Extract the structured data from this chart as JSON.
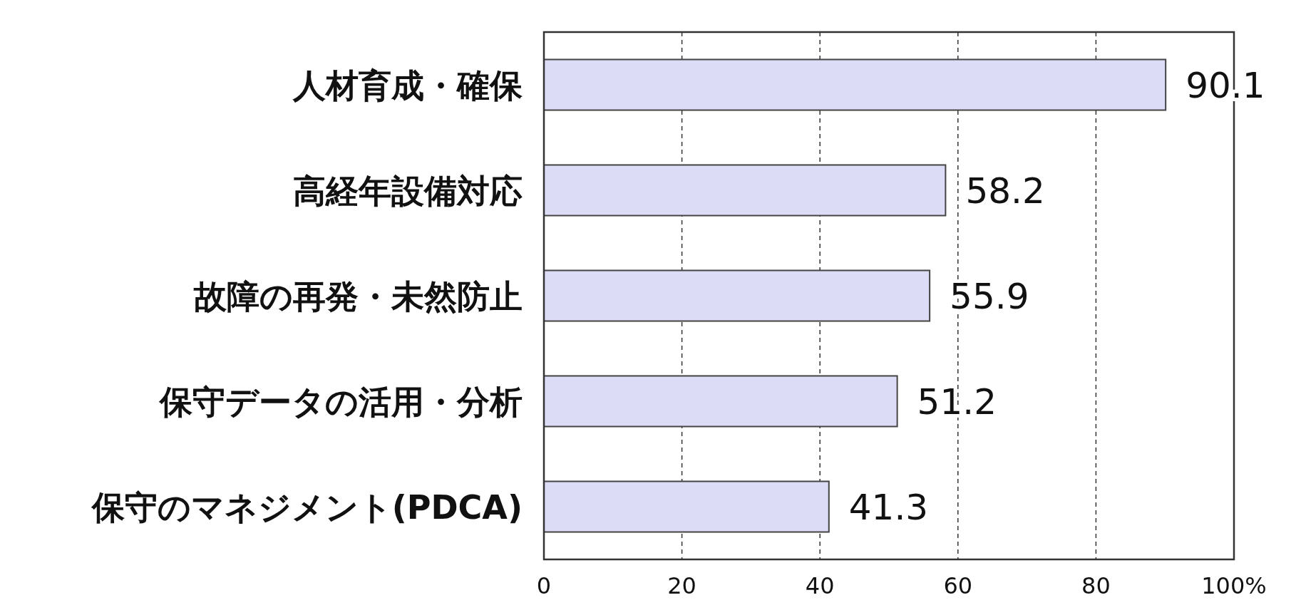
{
  "chart_data": {
    "type": "bar",
    "orientation": "horizontal",
    "categories": [
      "人材育成・確保",
      "高経年設備対応",
      "故障の再発・未然防止",
      "保守データの活用・分析",
      "保守のマネジメント(PDCA)"
    ],
    "values": [
      90.1,
      58.2,
      55.9,
      51.2,
      41.3
    ],
    "data_labels": true,
    "color": "#dcdcf6",
    "xlim": [
      0,
      100
    ],
    "xticks": [
      0,
      20,
      40,
      60,
      80,
      {
        "value": 100,
        "label": "100%"
      }
    ],
    "grid": "x"
  }
}
